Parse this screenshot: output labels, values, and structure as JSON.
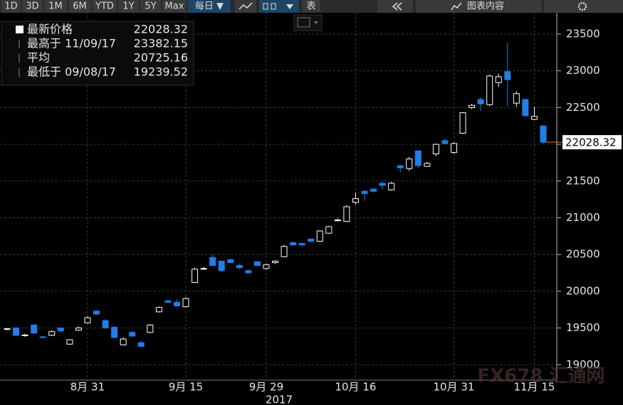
{
  "toolbar": {
    "ranges": [
      "1D",
      "3D",
      "1M",
      "6M",
      "YTD",
      "1Y",
      "5Y",
      "Max"
    ],
    "frequency": "每日 ▼",
    "table": "表",
    "chart_content": "图表内容"
  },
  "chart_data": {
    "type": "candlestick",
    "stats": [
      {
        "label": "最新价格",
        "value": 22028.32
      },
      {
        "label": "最高于 11/09/17",
        "value": 23382.15
      },
      {
        "label": "平均",
        "value": 20725.16
      },
      {
        "label": "最低于 09/08/17",
        "value": 19239.52
      }
    ],
    "categories": [
      null,
      null,
      null,
      null,
      null,
      null,
      null,
      null,
      null,
      "8月 31",
      null,
      null,
      null,
      null,
      null,
      null,
      null,
      null,
      null,
      null,
      "9月 15",
      null,
      null,
      null,
      null,
      null,
      null,
      null,
      null,
      "9月 29",
      null,
      null,
      null,
      null,
      null,
      null,
      null,
      null,
      null,
      "10月 16",
      null,
      null,
      null,
      null,
      null,
      null,
      null,
      null,
      null,
      null,
      "10月 31",
      null,
      null,
      null,
      null,
      null,
      null,
      null,
      null,
      "11月 15",
      null
    ],
    "x_label": "2017",
    "open": [
      19480,
      19500,
      19395,
      19540,
      19380,
      19400,
      19500,
      19280,
      19470,
      19570,
      19730,
      19600,
      19510,
      19270,
      19440,
      19300,
      19440,
      19720,
      19870,
      19850,
      19790,
      20120,
      20300,
      20460,
      20410,
      20430,
      20350,
      20280,
      20400,
      20310,
      20390,
      20470,
      20660,
      20650,
      20710,
      20680,
      20790,
      20960,
      20950,
      21210,
      21360,
      21390,
      21470,
      21380,
      21710,
      21670,
      21910,
      21700,
      21870,
      22050,
      21890,
      22150,
      22500,
      22610,
      22540,
      22840,
      22990,
      22560,
      22610,
      22340,
      22250
    ],
    "high": [
      19500,
      19510,
      19420,
      19550,
      19390,
      19470,
      19510,
      19350,
      19520,
      19660,
      19740,
      19620,
      19530,
      19370,
      19460,
      19320,
      19550,
      19790,
      19880,
      19890,
      19920,
      20320,
      20330,
      20500,
      20420,
      20440,
      20380,
      20300,
      20410,
      20380,
      20420,
      20630,
      20680,
      20660,
      20720,
      20830,
      20890,
      20990,
      21170,
      21340,
      21380,
      21400,
      21490,
      21490,
      21720,
      21830,
      21920,
      21760,
      22010,
      22080,
      22030,
      22440,
      22550,
      22640,
      22950,
      22960,
      23382.15,
      22720,
      22620,
      22510,
      22260
    ],
    "low": [
      19470,
      19390,
      19380,
      19420,
      19360,
      19390,
      19440,
      19270,
      19460,
      19560,
      19680,
      19490,
      19360,
      19260,
      19380,
      19239.52,
      19430,
      19710,
      19840,
      19790,
      19780,
      20110,
      20290,
      20340,
      20260,
      20380,
      20300,
      20240,
      20340,
      20290,
      20370,
      20460,
      20620,
      20610,
      20670,
      20670,
      20780,
      20950,
      20940,
      21180,
      21230,
      21340,
      21380,
      21370,
      21620,
      21640,
      21680,
      21690,
      21840,
      22000,
      21870,
      22140,
      22480,
      22450,
      22520,
      22780,
      22520,
      22510,
      22370,
      22330,
      22010
    ],
    "close": [
      19490,
      19400,
      19405,
      19430,
      19370,
      19450,
      19460,
      19340,
      19500,
      19640,
      19690,
      19500,
      19370,
      19350,
      19390,
      19250,
      19540,
      19780,
      19850,
      19800,
      19900,
      20300,
      20310,
      20350,
      20280,
      20390,
      20320,
      20250,
      20350,
      20360,
      20410,
      20610,
      20630,
      20630,
      20680,
      20820,
      20880,
      20970,
      21150,
      21260,
      21330,
      21360,
      21440,
      21470,
      21680,
      21800,
      21710,
      21740,
      22000,
      22010,
      22010,
      22430,
      22530,
      22550,
      22930,
      22920,
      22880,
      22690,
      22390,
      22380,
      22028.32
    ],
    "up_color": "#ffffff",
    "down_color": "#1e7fe8",
    "last_price_color": "#e07a2e",
    "ylim": [
      18790,
      23790
    ],
    "yticks": [
      19000,
      19500,
      20000,
      20500,
      21000,
      21500,
      22000,
      22500,
      23000,
      23500
    ],
    "grid": true,
    "watermark": "FX678 汇通网"
  }
}
